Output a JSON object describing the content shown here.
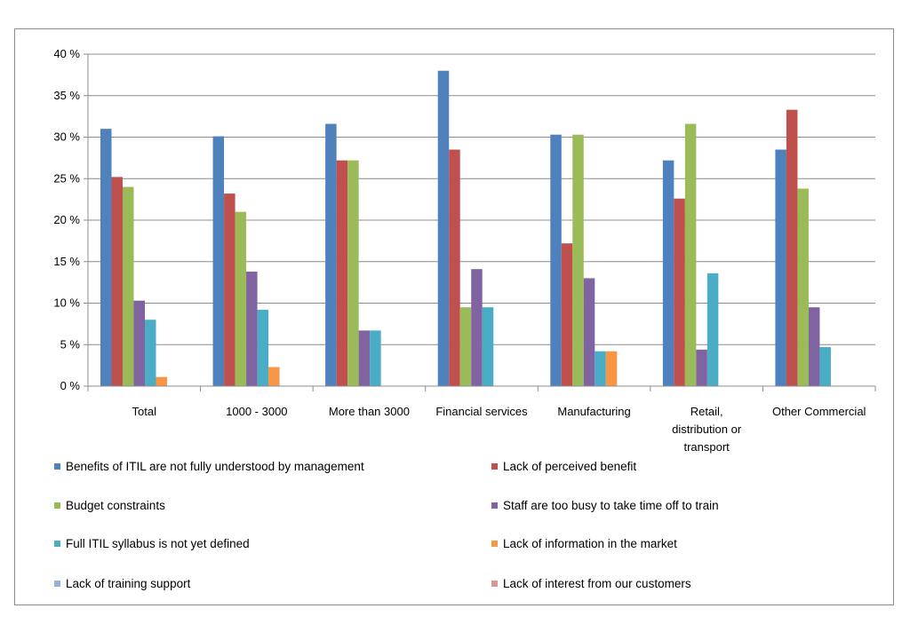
{
  "chart_data": {
    "type": "bar",
    "title": "",
    "xlabel": "",
    "ylabel": "",
    "ylim": [
      0,
      40
    ],
    "y_ticks": [
      0,
      5,
      10,
      15,
      20,
      25,
      30,
      35,
      40
    ],
    "y_tick_labels": [
      "0 %",
      "5 %",
      "10 %",
      "15 %",
      "20 %",
      "25 %",
      "30 %",
      "35 %",
      "40 %"
    ],
    "grid": true,
    "legend_position": "bottom",
    "categories": [
      [
        "Total"
      ],
      [
        "1000 - 3000"
      ],
      [
        "More than 3000"
      ],
      [
        "Financial services"
      ],
      [
        "Manufacturing"
      ],
      [
        "Retail,",
        "distribution or",
        "transport"
      ],
      [
        "Other Commercial"
      ]
    ],
    "series": [
      {
        "name": "Benefits of ITIL are not fully understood by management",
        "color": "#4F81BD",
        "values": [
          31,
          30.1,
          31.6,
          38,
          30.3,
          27.2,
          28.5
        ]
      },
      {
        "name": "Lack of perceived benefit",
        "color": "#C0504D",
        "values": [
          25.2,
          23.2,
          27.2,
          28.5,
          17.2,
          22.6,
          33.3
        ]
      },
      {
        "name": "Budget constraints",
        "color": "#9BBB59",
        "values": [
          24,
          21,
          27.2,
          9.5,
          30.3,
          31.6,
          23.8
        ]
      },
      {
        "name": "Staff are too busy to take time off to train",
        "color": "#8064A2",
        "values": [
          10.3,
          13.8,
          6.7,
          14.1,
          13,
          4.4,
          9.5
        ]
      },
      {
        "name": "Full ITIL syllabus is not yet defined",
        "color": "#4BACC6",
        "values": [
          8,
          9.2,
          6.7,
          9.5,
          4.2,
          13.6,
          4.7
        ]
      },
      {
        "name": "Lack of information in the market",
        "color": "#F79646",
        "values": [
          1.1,
          2.3,
          0,
          0,
          4.2,
          0,
          0
        ]
      },
      {
        "name": "Lack of training support",
        "color": "#95B3D7",
        "values": [
          0,
          0,
          0,
          0,
          0,
          0,
          0
        ]
      },
      {
        "name": "Lack of interest from our customers",
        "color": "#D99694",
        "values": [
          0,
          0,
          0,
          0,
          0,
          0,
          0
        ]
      }
    ]
  }
}
